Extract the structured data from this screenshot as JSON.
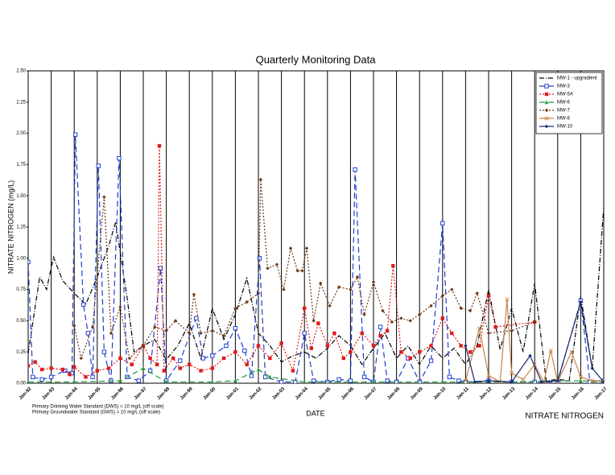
{
  "chart_data": {
    "type": "line",
    "title": "Quarterly Monitoring Data",
    "x_label": "DATE",
    "y_label": "NITRATE NITROGEN (mg/L)",
    "footer_label": "NITRATE NITROGEN",
    "notes": [
      "Primary Drinking Water Standard (DWS) = 10 mg/L (off scale)",
      "Primary Groundwater Standard (GWS) = 10 mg/L (off scale)"
    ],
    "xlim": [
      1992,
      2017
    ],
    "ylim": [
      0,
      2.5
    ],
    "xticks": [
      {
        "value": 1992,
        "label": "Jan-92"
      },
      {
        "value": 1993,
        "label": "Jan-93"
      },
      {
        "value": 1994,
        "label": "Jan-94"
      },
      {
        "value": 1995,
        "label": "Jan-95"
      },
      {
        "value": 1996,
        "label": "Jan-96"
      },
      {
        "value": 1997,
        "label": "Jan-97"
      },
      {
        "value": 1998,
        "label": "Jan-98"
      },
      {
        "value": 1999,
        "label": "Jan-99"
      },
      {
        "value": 2000,
        "label": "Jan-00"
      },
      {
        "value": 2001,
        "label": "Jan-01"
      },
      {
        "value": 2002,
        "label": "Jan-02"
      },
      {
        "value": 2003,
        "label": "Jan-03"
      },
      {
        "value": 2004,
        "label": "Jan-04"
      },
      {
        "value": 2005,
        "label": "Jan-05"
      },
      {
        "value": 2006,
        "label": "Jan-06"
      },
      {
        "value": 2007,
        "label": "Jan-07"
      },
      {
        "value": 2008,
        "label": "Jan-08"
      },
      {
        "value": 2009,
        "label": "Jan-09"
      },
      {
        "value": 2010,
        "label": "Jan-10"
      },
      {
        "value": 2011,
        "label": "Jan-11"
      },
      {
        "value": 2012,
        "label": "Jan-12"
      },
      {
        "value": 2013,
        "label": "Jan-13"
      },
      {
        "value": 2014,
        "label": "Jan-14"
      },
      {
        "value": 2015,
        "label": "Jan-15"
      },
      {
        "value": 2016,
        "label": "Jan-16"
      },
      {
        "value": 2017,
        "label": "Jan-17"
      }
    ],
    "yticks": [
      {
        "value": 0,
        "label": "0.00"
      },
      {
        "value": 0.25,
        "label": "0.25"
      },
      {
        "value": 0.5,
        "label": "0.50"
      },
      {
        "value": 0.75,
        "label": "0.75"
      },
      {
        "value": 1,
        "label": "1.00"
      },
      {
        "value": 1.25,
        "label": "1.25"
      },
      {
        "value": 1.5,
        "label": "1.50"
      },
      {
        "value": 1.75,
        "label": "1.75"
      },
      {
        "value": 2,
        "label": "2.00"
      },
      {
        "value": 2.25,
        "label": "2.25"
      },
      {
        "value": 2.5,
        "label": "2.50"
      }
    ],
    "grid": true,
    "legend": "top-right",
    "series": [
      {
        "name": "MW-1 - upgradient",
        "color": "#000000",
        "dash": "6,2,1,2",
        "marker": "none",
        "x": [
          1992,
          1992.5,
          1992.8,
          1993.1,
          1993.5,
          1994,
          1994.5,
          1995,
          1995.5,
          1995.8,
          1996.3,
          1996.6,
          1997,
          1997.5,
          1998,
          1998.5,
          1999,
          1999.5,
          2000,
          2000.5,
          2001,
          2001.5,
          2002,
          2002.5,
          2003,
          2003.5,
          2004,
          2004.5,
          2005,
          2005.5,
          2006,
          2006.5,
          2007,
          2007.5,
          2008,
          2008.5,
          2009,
          2009.5,
          2010,
          2010.5,
          2011,
          2011.5,
          2012,
          2012.5,
          2013,
          2013.5,
          2014,
          2014.5,
          2015,
          2015.5,
          2016,
          2016.5,
          2017
        ],
        "values": [
          0.24,
          0.85,
          0.75,
          1.01,
          0.82,
          0.72,
          0.63,
          0.85,
          1.1,
          1.29,
          0.68,
          0.25,
          0.3,
          0.35,
          0.19,
          0.3,
          0.48,
          0.2,
          0.6,
          0.35,
          0.55,
          0.84,
          0.4,
          0.3,
          0.17,
          0.22,
          0.25,
          0.2,
          0.28,
          0.38,
          0.3,
          0.15,
          0.28,
          0.4,
          0.2,
          0.3,
          0.15,
          0.3,
          0.2,
          0.28,
          0.15,
          0.3,
          0.75,
          0.27,
          0.6,
          0.25,
          0.8,
          0.02,
          0.03,
          0.02,
          0.7,
          0.12,
          1.41
        ]
      },
      {
        "name": "MW-3",
        "color": "#1f3fd0",
        "dash": "7,4",
        "marker": "square-open",
        "x": [
          1992,
          1992.2,
          1992.6,
          1993,
          1993.6,
          1993.9,
          1994.05,
          1994.4,
          1994.6,
          1994.8,
          1995.05,
          1995.3,
          1995.6,
          1995.95,
          1996.3,
          1996.8,
          1997.3,
          1997.75,
          1998,
          1998.6,
          1999.3,
          1999.6,
          2000,
          2000.6,
          2001,
          2001.4,
          2001.7,
          2002.05,
          2002.3,
          2003,
          2003.6,
          2004,
          2004.4,
          2005,
          2005.5,
          2006,
          2006.2,
          2006.6,
          2007,
          2007.3,
          2007.6,
          2008,
          2008.5,
          2009,
          2009.5,
          2010,
          2010.3,
          2010.7,
          2011,
          2012,
          2013,
          2014,
          2015,
          2016,
          2016.4,
          2017
        ],
        "values": [
          0.97,
          0.05,
          0.03,
          0.05,
          0.1,
          0.08,
          1.99,
          0.63,
          0.4,
          0.05,
          1.74,
          0.25,
          0.02,
          1.8,
          0.05,
          0.02,
          0.1,
          0.92,
          0.02,
          0.18,
          0.52,
          0.2,
          0.22,
          0.3,
          0.44,
          0.26,
          0.06,
          1.0,
          0.05,
          0.01,
          0.01,
          0.4,
          0.02,
          0.01,
          0.03,
          0.02,
          1.71,
          0.05,
          0.01,
          0.45,
          0.02,
          0.01,
          0.2,
          0.01,
          0.18,
          1.28,
          0.05,
          0.02,
          0.01,
          0.02,
          0.01,
          0.01,
          0.01,
          0.66,
          0.01,
          0.02
        ]
      },
      {
        "name": "MW-5A",
        "color": "#e01b1b",
        "dash": "2,2",
        "marker": "square",
        "x": [
          1992,
          1992.3,
          1992.6,
          1993,
          1993.5,
          1993.8,
          1994,
          1994.5,
          1995,
          1995.5,
          1996,
          1996.5,
          1997,
          1997.3,
          1997.6,
          1997.7,
          1997.9,
          1998.3,
          1998.6,
          1999,
          1999.5,
          2000,
          2000.5,
          2001,
          2001.5,
          2002,
          2002.5,
          2003,
          2003.5,
          2004,
          2004.3,
          2004.6,
          2005,
          2005.3,
          2005.7,
          2006,
          2006.5,
          2007,
          2007.3,
          2007.6,
          2007.85,
          2008.2,
          2008.6,
          2009,
          2009.5,
          2010,
          2010.4,
          2010.8,
          2011.2,
          2011.6,
          2012,
          2012.3,
          2014
        ],
        "values": [
          0.14,
          0.17,
          0.11,
          0.12,
          0.11,
          0.07,
          0.13,
          0.05,
          0.1,
          0.12,
          0.2,
          0.15,
          0.3,
          0.2,
          0.15,
          1.9,
          0.1,
          0.2,
          0.12,
          0.15,
          0.1,
          0.12,
          0.2,
          0.25,
          0.15,
          0.3,
          0.2,
          0.32,
          0.1,
          0.6,
          0.28,
          0.48,
          0.3,
          0.4,
          0.2,
          0.25,
          0.4,
          0.3,
          0.38,
          0.42,
          0.94,
          0.25,
          0.2,
          0.25,
          0.3,
          0.52,
          0.4,
          0.3,
          0.25,
          0.3,
          0.7,
          0.45,
          0.49
        ]
      },
      {
        "name": "MW-6",
        "color": "#1e9a3a",
        "dash": "7,4",
        "marker": "triangle",
        "x": [
          1992,
          1994,
          1996,
          1997,
          1998,
          2000,
          2001,
          2002,
          2002.5,
          2004,
          2007,
          2010,
          2013,
          2016,
          2017
        ],
        "values": [
          0.01,
          0.01,
          0.02,
          0.12,
          0.01,
          0.01,
          0.02,
          0.11,
          0.05,
          0.01,
          0.01,
          0.01,
          0.01,
          0.02,
          0.01
        ]
      },
      {
        "name": "MW-7",
        "color": "#6b3a1a",
        "dash": "2,2",
        "marker": "diamond",
        "x": [
          1994,
          1994.3,
          1994.8,
          1995.3,
          1995.6,
          1996,
          1996.4,
          1997,
          1997.5,
          1998,
          1998.4,
          1999,
          1999.2,
          1999.5,
          2000,
          2000.5,
          2001,
          2001.5,
          2002,
          2002.1,
          2002.4,
          2002.8,
          2003.1,
          2003.4,
          2003.7,
          2003.9,
          2004.1,
          2004.4,
          2004.7,
          2005.1,
          2005.5,
          2006,
          2006.3,
          2006.6,
          2007,
          2007.4,
          2007.8,
          2008.2,
          2008.6,
          2009,
          2009.5,
          2010,
          2010.4,
          2010.8,
          2011.2,
          2011.5,
          2012,
          2013,
          2014
        ],
        "values": [
          0.46,
          0.2,
          0.45,
          1.49,
          0.4,
          0.61,
          0.2,
          0.3,
          0.45,
          0.42,
          0.5,
          0.4,
          0.71,
          0.4,
          0.42,
          0.38,
          0.6,
          0.65,
          0.72,
          1.63,
          0.92,
          0.95,
          0.75,
          1.08,
          0.9,
          0.9,
          1.08,
          0.5,
          0.8,
          0.62,
          0.77,
          0.75,
          0.85,
          0.55,
          0.81,
          0.58,
          0.49,
          0.52,
          0.5,
          0.55,
          0.62,
          0.7,
          0.75,
          0.6,
          0.58,
          0.72,
          0.4,
          0.42,
          0.49
        ]
      },
      {
        "name": "MW-8",
        "color": "#c8864a",
        "dash": "none",
        "marker": "x",
        "x": [
          2011,
          2011.6,
          2012,
          2012.5,
          2012.8,
          2013,
          2013.5,
          2014,
          2014.4,
          2014.7,
          2015,
          2015.6,
          2016,
          2016.5,
          2017
        ],
        "values": [
          0.02,
          0.44,
          0.06,
          0.01,
          0.67,
          0.08,
          0.03,
          0.15,
          0.01,
          0.26,
          0.01,
          0.25,
          0.05,
          0.02,
          0.02
        ]
      },
      {
        "name": "MW-10",
        "color": "#1a2a6e",
        "dash": "none",
        "marker": "diamond",
        "x": [
          2011,
          2011.4,
          2012,
          2013,
          2013.8,
          2014.3,
          2015,
          2016,
          2016.5,
          2017
        ],
        "values": [
          0.3,
          0.01,
          0.02,
          0.01,
          0.22,
          0.01,
          0.02,
          0.65,
          0.12,
          0.01
        ]
      }
    ]
  }
}
